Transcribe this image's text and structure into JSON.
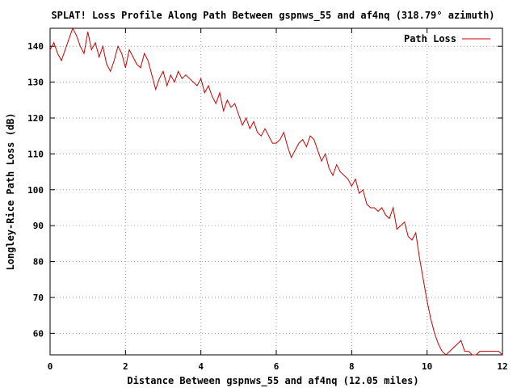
{
  "chart_data": {
    "type": "line",
    "title": "SPLAT! Loss Profile Along Path Between gspnws_55 and af4nq (318.79° azimuth)",
    "xlabel": "Distance Between gspnws_55 and af4nq (12.05 miles)",
    "ylabel": "Longley-Rice Path Loss (dB)",
    "xlim": [
      0,
      12
    ],
    "ylim": [
      54,
      145
    ],
    "x_ticks": [
      "0",
      "2",
      "4",
      "6",
      "8",
      "10",
      "12"
    ],
    "x_tick_values": [
      0,
      2,
      4,
      6,
      8,
      10,
      12
    ],
    "y_ticks": [
      "60",
      "70",
      "80",
      "90",
      "100",
      "110",
      "120",
      "130",
      "140"
    ],
    "y_tick_values": [
      60,
      70,
      80,
      90,
      100,
      110,
      120,
      130,
      140
    ],
    "grid": true,
    "legend_position": "top-right",
    "colors": {
      "series": "#cc0000",
      "grid": "#a0a0a0",
      "axis": "#000000"
    },
    "series": [
      {
        "name": "Path Loss",
        "x": [
          0.0,
          0.1,
          0.2,
          0.3,
          0.4,
          0.5,
          0.6,
          0.7,
          0.8,
          0.9,
          1.0,
          1.1,
          1.2,
          1.3,
          1.4,
          1.5,
          1.6,
          1.7,
          1.8,
          1.9,
          2.0,
          2.1,
          2.2,
          2.3,
          2.4,
          2.5,
          2.6,
          2.7,
          2.8,
          2.9,
          3.0,
          3.1,
          3.2,
          3.3,
          3.4,
          3.5,
          3.6,
          3.7,
          3.8,
          3.9,
          4.0,
          4.1,
          4.2,
          4.3,
          4.4,
          4.5,
          4.6,
          4.7,
          4.8,
          4.9,
          5.0,
          5.1,
          5.2,
          5.3,
          5.4,
          5.5,
          5.6,
          5.7,
          5.8,
          5.9,
          6.0,
          6.1,
          6.2,
          6.3,
          6.4,
          6.5,
          6.6,
          6.7,
          6.8,
          6.9,
          7.0,
          7.1,
          7.2,
          7.3,
          7.4,
          7.5,
          7.6,
          7.7,
          7.8,
          7.9,
          8.0,
          8.1,
          8.2,
          8.3,
          8.4,
          8.5,
          8.6,
          8.7,
          8.8,
          8.9,
          9.0,
          9.1,
          9.2,
          9.3,
          9.4,
          9.5,
          9.6,
          9.7,
          9.8,
          9.9,
          10.0,
          10.1,
          10.2,
          10.3,
          10.4,
          10.5,
          10.6,
          10.7,
          10.8,
          10.9,
          11.0,
          11.1,
          11.2,
          11.3,
          11.4,
          11.5,
          11.6,
          11.7,
          11.8,
          11.9,
          12.0
        ],
        "values": [
          139,
          141,
          138,
          136,
          139,
          142,
          145,
          143,
          140,
          138,
          144,
          139,
          141,
          137,
          140,
          135,
          133,
          136,
          140,
          138,
          134,
          139,
          137,
          135,
          134,
          138,
          136,
          132,
          128,
          131,
          133,
          129,
          132,
          130,
          133,
          131,
          132,
          131,
          130,
          129,
          131,
          127,
          129,
          126,
          124,
          127,
          122,
          125,
          123,
          124,
          121,
          118,
          120,
          117,
          119,
          116,
          115,
          117,
          115,
          113,
          113,
          114,
          116,
          112,
          109,
          111,
          113,
          114,
          112,
          115,
          114,
          111,
          108,
          110,
          106,
          104,
          107,
          105,
          104,
          103,
          101,
          103,
          99,
          100,
          96,
          95,
          95,
          94,
          95,
          93,
          92,
          95,
          89,
          90,
          91,
          87,
          86,
          88,
          81,
          75,
          69,
          64,
          60,
          57,
          55,
          54,
          55,
          56,
          57,
          58,
          55,
          55,
          54,
          54,
          55,
          55,
          55,
          55,
          55,
          55,
          54
        ]
      }
    ]
  }
}
